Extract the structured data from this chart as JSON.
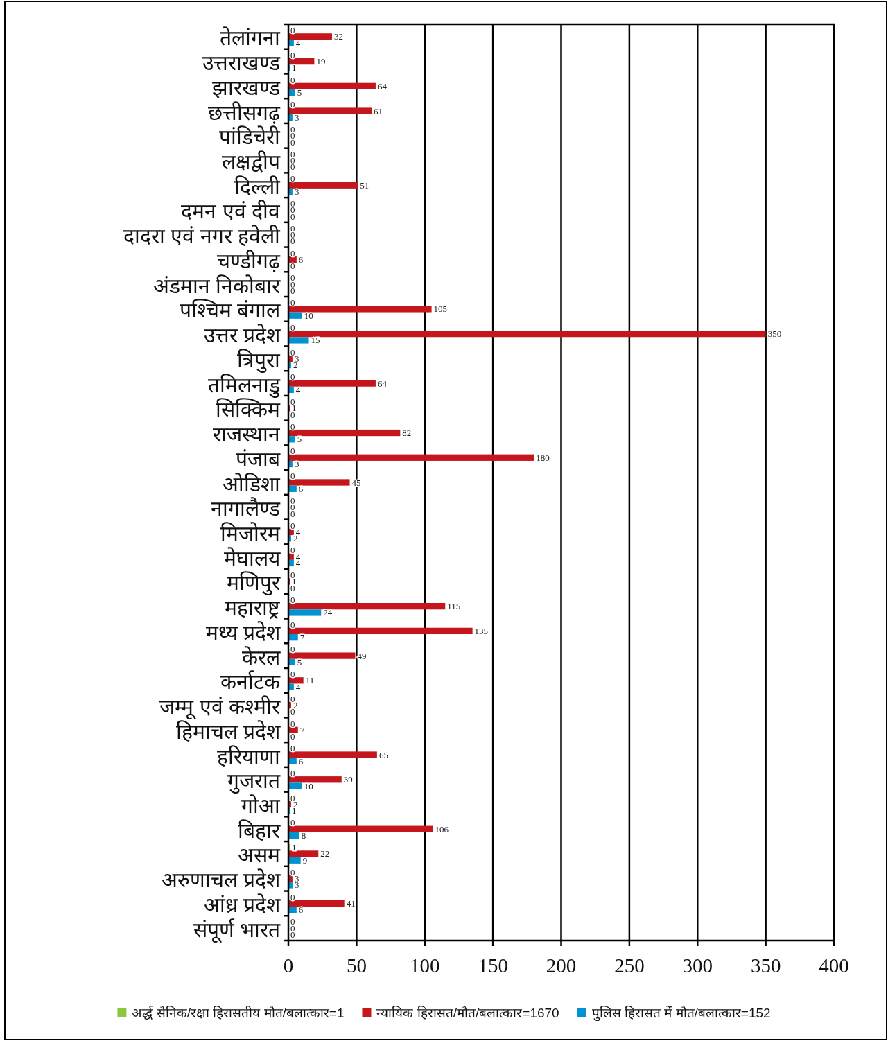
{
  "chart_data": {
    "type": "bar",
    "orientation": "horizontal",
    "categories": [
      "तेलांगना",
      "उत्तराखण्ड",
      "झारखण्ड",
      "छत्तीसगढ़",
      "पांडिचेरी",
      "लक्षद्वीप",
      "दिल्ली",
      "दमन एवं दीव",
      "दादरा एवं नगर हवेली",
      "चण्डीगढ़",
      "अंडमान निकोबार",
      "पश्चिम बंगाल",
      "उत्तर प्रदेश",
      "त्रिपुरा",
      "तमिलनाडु",
      "सिक्किम",
      "राजस्थान",
      "पंजाब",
      "ओडिशा",
      "नागालैण्ड",
      "मिजोरम",
      "मेघालय",
      "मणिपुर",
      "महाराष्ट्र",
      "मध्य प्रदेश",
      "केरल",
      "कर्नाटक",
      "जम्मू एवं कश्मीर",
      "हिमाचल प्रदेश",
      "हरियाणा",
      "गुजरात",
      "गोआ",
      "बिहार",
      "असम",
      "अरुणाचल प्रदेश",
      "आंध्र प्रदेश",
      "संपूर्ण भारत"
    ],
    "series": [
      {
        "name": "अर्द्ध सैनिक/रक्षा हिरासतीय मौत/बलात्कार=1",
        "color": "#8dc63f",
        "values": [
          0,
          0,
          0,
          0,
          0,
          0,
          0,
          0,
          0,
          0,
          0,
          0,
          0,
          0,
          0,
          0,
          0,
          0,
          0,
          0,
          0,
          0,
          0,
          0,
          0,
          0,
          0,
          0,
          0,
          0,
          0,
          0,
          0,
          1,
          0,
          0,
          0
        ]
      },
      {
        "name": "न्यायिक हिरासत/मौत/बलात्कार=1670",
        "color": "#c4161c",
        "values": [
          32,
          19,
          64,
          61,
          0,
          0,
          51,
          0,
          0,
          6,
          0,
          105,
          350,
          3,
          64,
          1,
          82,
          180,
          45,
          0,
          4,
          4,
          1,
          115,
          135,
          49,
          11,
          2,
          7,
          65,
          39,
          2,
          106,
          22,
          3,
          41,
          0
        ]
      },
      {
        "name": "पुलिस हिरासत में मौत/बलात्कार=152",
        "color": "#0093d0",
        "values": [
          4,
          1,
          5,
          3,
          0,
          0,
          3,
          0,
          0,
          0,
          0,
          10,
          15,
          2,
          4,
          0,
          5,
          3,
          6,
          0,
          2,
          4,
          0,
          24,
          7,
          5,
          4,
          0,
          0,
          6,
          10,
          1,
          8,
          9,
          3,
          6,
          0
        ]
      }
    ],
    "xlim": [
      0,
      400
    ],
    "xticks": [
      0,
      50,
      100,
      150,
      200,
      250,
      300,
      350,
      400
    ],
    "grid": "x",
    "legend": "bottom",
    "data_labels": true
  }
}
